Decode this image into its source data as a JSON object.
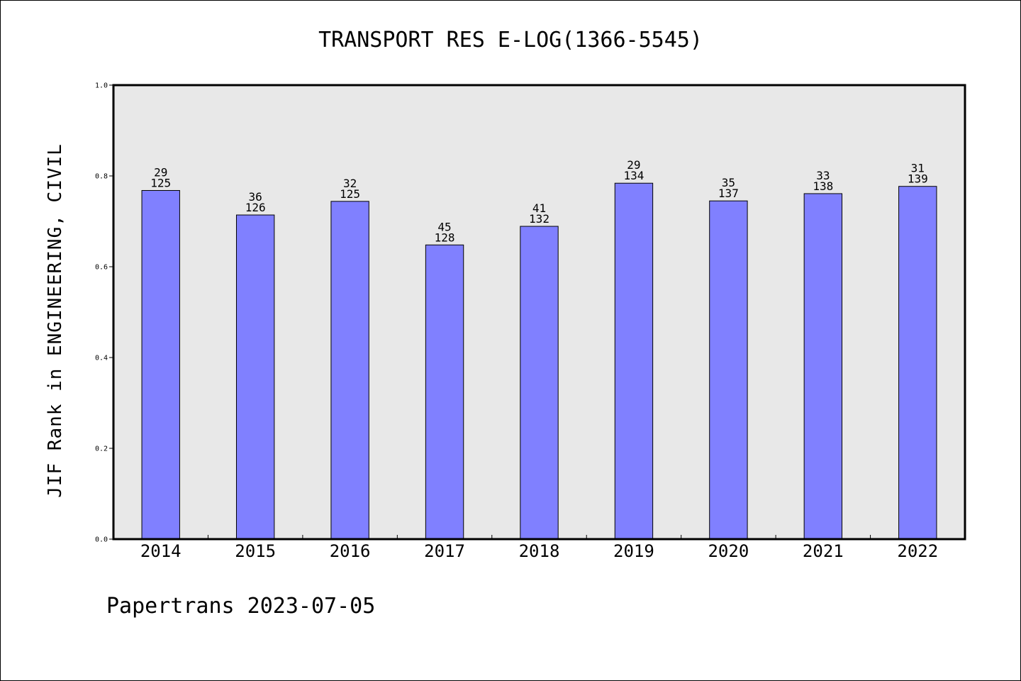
{
  "chart_data": {
    "type": "bar",
    "title": "TRANSPORT RES E-LOG(1366-5545)",
    "xlabel": "",
    "ylabel": "JIF Rank in ENGINEERING, CIVIL",
    "ylim": [
      0,
      1
    ],
    "yticks": [
      "0.0",
      "0.2",
      "0.4",
      "0.6",
      "0.8",
      "1.0"
    ],
    "grid": false,
    "categories": [
      "2014",
      "2015",
      "2016",
      "2017",
      "2018",
      "2019",
      "2020",
      "2021",
      "2022"
    ],
    "values": [
      0.768,
      0.714,
      0.744,
      0.648,
      0.689,
      0.784,
      0.745,
      0.761,
      0.777
    ],
    "ranks": [
      "29",
      "36",
      "32",
      "45",
      "41",
      "29",
      "35",
      "33",
      "31"
    ],
    "totals": [
      "125",
      "126",
      "125",
      "128",
      "132",
      "134",
      "137",
      "138",
      "139"
    ],
    "bar_color": "#8080ff",
    "plot_bg": "#e8e8e8"
  },
  "footer": "Papertrans 2023-07-05"
}
